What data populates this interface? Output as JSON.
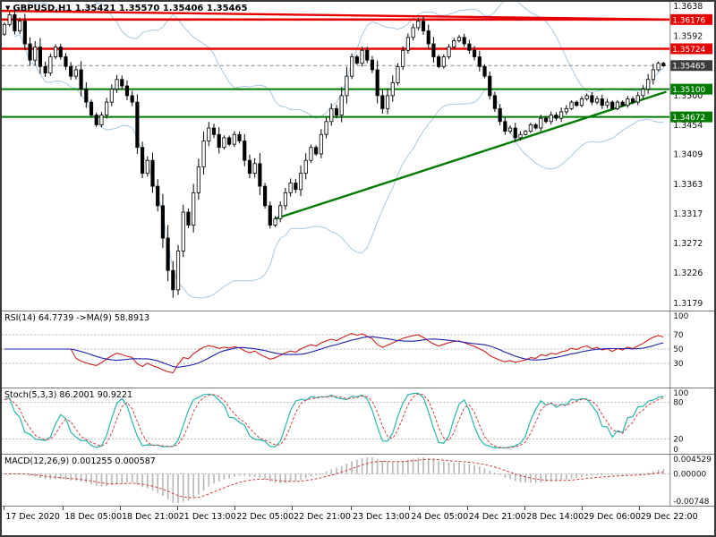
{
  "window": {
    "symbol_label": "GBPUSD,H1 1.35421 1.35570 1.35406 1.35465"
  },
  "chart_data": {
    "type": "candlestick",
    "symbol": "GBPUSD",
    "timeframe": "H1",
    "quote": {
      "open": "1.35421",
      "high": "1.35570",
      "low": "1.35406",
      "close": "1.35465"
    },
    "price_axis": {
      "min": 1.3168,
      "max": 1.3645,
      "labels": [
        1.3638,
        1.3592,
        1.35,
        1.3454,
        1.3409,
        1.3363,
        1.3317,
        1.3272,
        1.3226,
        1.3179
      ]
    },
    "time_axis": [
      {
        "label": "17 Dec 2020",
        "pos": 0.003
      },
      {
        "label": "18 Dec 05:00",
        "pos": 0.091
      },
      {
        "label": "18 Dec 21:00",
        "pos": 0.176
      },
      {
        "label": "21 Dec 13:00",
        "pos": 0.261
      },
      {
        "label": "22 Dec 05:00",
        "pos": 0.347
      },
      {
        "label": "22 Dec 21:00",
        "pos": 0.432
      },
      {
        "label": "23 Dec 13:00",
        "pos": 0.52
      },
      {
        "label": "24 Dec 05:00",
        "pos": 0.607
      },
      {
        "label": "24 Dec 21:00",
        "pos": 0.693
      },
      {
        "label": "28 Dec 14:00",
        "pos": 0.779
      },
      {
        "label": "29 Dec 06:00",
        "pos": 0.864
      },
      {
        "label": "29 Dec 22:00",
        "pos": 0.949
      }
    ],
    "first_open": 1.3595,
    "closes": [
      1.361,
      1.3625,
      1.36,
      1.3615,
      1.358,
      1.3555,
      1.3575,
      1.3545,
      1.3535,
      1.356,
      1.3575,
      1.356,
      1.3545,
      1.353,
      1.354,
      1.351,
      1.349,
      1.347,
      1.3455,
      1.347,
      1.349,
      1.351,
      1.3525,
      1.3515,
      1.35,
      1.349,
      1.342,
      1.338,
      1.34,
      1.336,
      1.333,
      1.328,
      1.323,
      1.32,
      1.326,
      1.332,
      1.33,
      1.335,
      1.339,
      1.343,
      1.345,
      1.344,
      1.342,
      1.3435,
      1.3425,
      1.344,
      1.343,
      1.34,
      1.338,
      1.3395,
      1.336,
      1.333,
      1.33,
      1.331,
      1.333,
      1.335,
      1.3365,
      1.3355,
      1.338,
      1.34,
      1.342,
      1.341,
      1.344,
      1.346,
      1.348,
      1.347,
      1.35,
      1.353,
      1.356,
      1.355,
      1.357,
      1.3555,
      1.354,
      1.35,
      1.348,
      1.35,
      1.352,
      1.3545,
      1.357,
      1.359,
      1.3605,
      1.3615,
      1.36,
      1.358,
      1.356,
      1.3545,
      1.356,
      1.3575,
      1.3585,
      1.359,
      1.358,
      1.357,
      1.356,
      1.3545,
      1.353,
      1.35,
      1.348,
      1.346,
      1.3445,
      1.345,
      1.3435,
      1.344,
      1.3445,
      1.3455,
      1.345,
      1.3465,
      1.346,
      1.347,
      1.3465,
      1.3475,
      1.348,
      1.349,
      1.3485,
      1.3495,
      1.35,
      1.349,
      1.3495,
      1.3485,
      1.349,
      1.348,
      1.349,
      1.3485,
      1.3495,
      1.349,
      1.35,
      1.351,
      1.3525,
      1.354,
      1.355,
      1.3546
    ],
    "candle_colors": {
      "bull": "#ffffff",
      "bear": "#000000",
      "outline": "#000000"
    },
    "bollinger": {
      "period": 20,
      "deviation": 2,
      "color": "#a9c9de"
    },
    "hlines": [
      {
        "value": 1.36176,
        "label": "1.36176",
        "color": "#e60000",
        "width": 2.6
      },
      {
        "value": 1.35724,
        "label": "1.35724",
        "color": "#e60000",
        "width": 2.6
      },
      {
        "value": 1.351,
        "label": "1.35100",
        "color": "#007a00",
        "width": 2
      },
      {
        "value": 1.34672,
        "label": "1.34672",
        "color": "#007a00",
        "width": 2
      }
    ],
    "trendlines": [
      {
        "x1": 0,
        "p1": 1.3631,
        "x2": 1.0,
        "p2": 1.36176,
        "color": "#e60000",
        "width": 2.4
      },
      {
        "x1": 0.41,
        "p1": 1.331,
        "x2": 0.995,
        "p2": 1.3506,
        "color": "#007a00",
        "width": 2.4
      }
    ],
    "price_line": {
      "value": 1.35465,
      "label": "1.35465",
      "color": "#3c3c3c"
    },
    "indicators": [
      {
        "name": "RSI",
        "label": "RSI(14) 64.7739 ->MA(9) 58.8913",
        "range": [
          0,
          100
        ],
        "levels": [
          70,
          50,
          30
        ],
        "axis_labels": [
          {
            "text": "100",
            "v": 100
          },
          {
            "text": "70",
            "v": 70
          },
          {
            "text": "50",
            "v": 50
          },
          {
            "text": "30",
            "v": 30
          }
        ],
        "colors": {
          "main": "#cc2020",
          "signal": "#2020b0"
        }
      },
      {
        "name": "Stochastic",
        "label": "Stoch(5,3,3) 86.2001 90.9221",
        "range": [
          0,
          100
        ],
        "levels": [
          80,
          20
        ],
        "axis_labels": [
          {
            "text": "100",
            "v": 100
          },
          {
            "text": "80",
            "v": 80
          },
          {
            "text": "20",
            "v": 20
          },
          {
            "text": "0",
            "v": 0
          }
        ],
        "colors": {
          "main": "#2ab5ab",
          "signal": "#cc4444"
        }
      },
      {
        "name": "MACD",
        "label": "MACD(12,26,9) 0.001255 0.000587",
        "range": [
          -0.0078,
          0.0047
        ],
        "levels": [
          0
        ],
        "axis_labels": [
          {
            "text": "0.004529",
            "v": 0.004529
          },
          {
            "text": "0.00000",
            "v": 0
          },
          {
            "text": "-0.00748",
            "v": -0.00748
          }
        ],
        "colors": {
          "main": "#b6b6b6",
          "signal": "#cc4444"
        }
      }
    ]
  }
}
